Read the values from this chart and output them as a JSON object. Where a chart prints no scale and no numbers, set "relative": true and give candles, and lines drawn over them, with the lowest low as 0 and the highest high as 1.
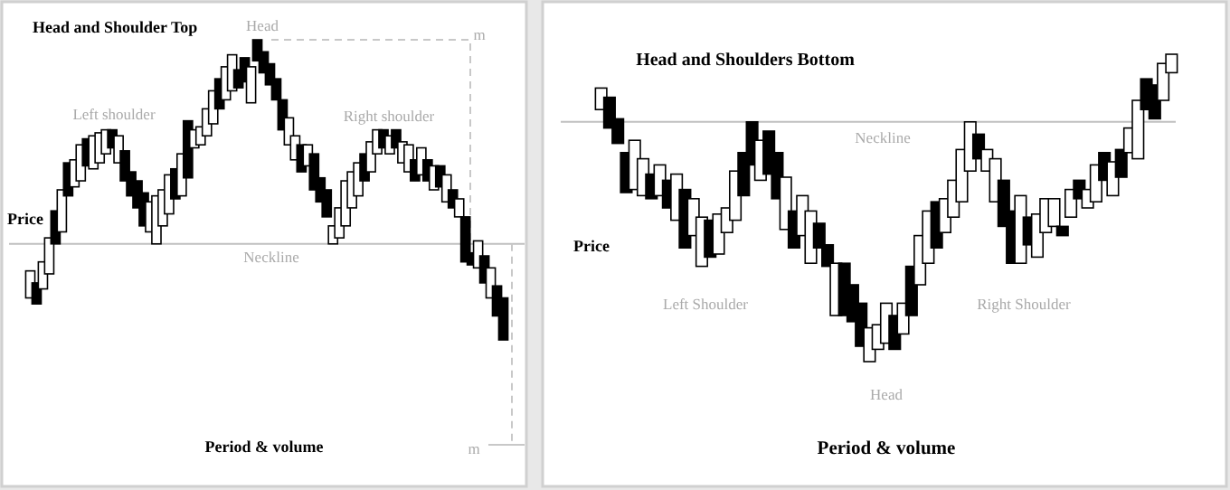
{
  "chart_data": [
    {
      "type": "candlestick",
      "title": "Head and Shoulder Top",
      "xlabel": "Period & volume",
      "ylabel": "Price",
      "relative": true,
      "color": "#000000",
      "categories": [
        null,
        null,
        null,
        null,
        null,
        null,
        null,
        null,
        null,
        null,
        null,
        null,
        null,
        null,
        null,
        null,
        null,
        null,
        null,
        null,
        null,
        null,
        null,
        null,
        null,
        null,
        null,
        null,
        null,
        null,
        null,
        null,
        null,
        null,
        null,
        null,
        null,
        null,
        null,
        null,
        null,
        null,
        null,
        null,
        null,
        null,
        null,
        null,
        null,
        null,
        null,
        null,
        null,
        null,
        null,
        null,
        null,
        null,
        null,
        null,
        null,
        null,
        null,
        null,
        null,
        null,
        null,
        null,
        null,
        null,
        null,
        null,
        null,
        null,
        null,
        null
      ],
      "ohlc": [
        [
          0.14,
          0.23,
          0.14,
          0.23
        ],
        [
          0.19,
          0.19,
          0.12,
          0.12
        ],
        [
          0.17,
          0.26,
          0.17,
          0.26
        ],
        [
          0.22,
          0.34,
          0.22,
          0.34
        ],
        [
          0.43,
          0.43,
          0.32,
          0.32
        ],
        [
          0.36,
          0.5,
          0.36,
          0.5
        ],
        [
          0.59,
          0.59,
          0.48,
          0.48
        ],
        [
          0.51,
          0.6,
          0.51,
          0.6
        ],
        [
          0.53,
          0.65,
          0.53,
          0.65
        ],
        [
          0.67,
          0.67,
          0.58,
          0.58
        ],
        [
          0.57,
          0.68,
          0.57,
          0.68
        ],
        [
          0.59,
          0.69,
          0.59,
          0.69
        ],
        [
          0.62,
          0.7,
          0.62,
          0.7
        ],
        [
          0.7,
          0.7,
          0.64,
          0.64
        ],
        [
          0.59,
          0.68,
          0.59,
          0.68
        ],
        [
          0.63,
          0.63,
          0.53,
          0.53
        ],
        [
          0.56,
          0.56,
          0.48,
          0.48
        ],
        [
          0.53,
          0.53,
          0.44,
          0.44
        ],
        [
          0.49,
          0.49,
          0.38,
          0.38
        ],
        [
          0.36,
          0.46,
          0.36,
          0.46
        ],
        [
          0.32,
          0.48,
          0.32,
          0.48
        ],
        [
          0.38,
          0.5,
          0.38,
          0.5
        ],
        [
          0.42,
          0.55,
          0.42,
          0.55
        ],
        [
          0.57,
          0.57,
          0.47,
          0.47
        ],
        [
          0.48,
          0.62,
          0.48,
          0.62
        ],
        [
          0.73,
          0.73,
          0.54,
          0.54
        ],
        [
          0.64,
          0.7,
          0.64,
          0.7
        ],
        [
          0.65,
          0.71,
          0.65,
          0.71
        ],
        [
          0.68,
          0.77,
          0.68,
          0.77
        ],
        [
          0.72,
          0.83,
          0.72,
          0.83
        ],
        [
          0.87,
          0.87,
          0.77,
          0.77
        ],
        [
          0.8,
          0.91,
          0.8,
          0.91
        ],
        [
          0.83,
          0.95,
          0.83,
          0.95
        ],
        [
          0.9,
          0.9,
          0.84,
          0.84
        ],
        [
          0.94,
          0.94,
          0.86,
          0.86
        ],
        [
          0.79,
          0.91,
          0.79,
          0.91
        ],
        [
          1,
          1,
          0.93,
          0.93
        ],
        [
          0.96,
          0.96,
          0.89,
          0.89
        ],
        [
          0.92,
          0.92,
          0.85,
          0.85
        ],
        [
          0.87,
          0.87,
          0.8,
          0.8
        ],
        [
          0.8,
          0.8,
          0.7,
          0.7
        ],
        [
          0.65,
          0.74,
          0.65,
          0.74
        ],
        [
          0.6,
          0.68,
          0.6,
          0.68
        ],
        [
          0.65,
          0.65,
          0.56,
          0.56
        ],
        [
          0.58,
          0.65,
          0.58,
          0.65
        ],
        [
          0.62,
          0.62,
          0.5,
          0.5
        ],
        [
          0.54,
          0.54,
          0.46,
          0.46
        ],
        [
          0.5,
          0.5,
          0.41,
          0.41
        ],
        [
          0.32,
          0.38,
          0.32,
          0.38
        ],
        [
          0.34,
          0.44,
          0.34,
          0.44
        ],
        [
          0.38,
          0.53,
          0.38,
          0.53
        ],
        [
          0.44,
          0.56,
          0.44,
          0.56
        ],
        [
          0.48,
          0.59,
          0.48,
          0.59
        ],
        [
          0.62,
          0.62,
          0.53,
          0.53
        ],
        [
          0.56,
          0.66,
          0.56,
          0.66
        ],
        [
          0.62,
          0.7,
          0.62,
          0.7
        ],
        [
          0.7,
          0.7,
          0.64,
          0.64
        ],
        [
          0.62,
          0.68,
          0.62,
          0.68
        ],
        [
          0.7,
          0.7,
          0.64,
          0.64
        ],
        [
          0.59,
          0.66,
          0.59,
          0.66
        ],
        [
          0.56,
          0.65,
          0.56,
          0.65
        ],
        [
          0.6,
          0.6,
          0.53,
          0.53
        ],
        [
          0.55,
          0.64,
          0.55,
          0.64
        ],
        [
          0.6,
          0.6,
          0.53,
          0.53
        ],
        [
          0.5,
          0.58,
          0.5,
          0.58
        ],
        [
          0.58,
          0.58,
          0.51,
          0.51
        ],
        [
          0.46,
          0.55,
          0.46,
          0.55
        ],
        [
          0.5,
          0.5,
          0.44,
          0.44
        ],
        [
          0.41,
          0.47,
          0.41,
          0.47
        ],
        [
          0.41,
          0.41,
          0.26,
          0.26
        ],
        [
          0.29,
          0.29,
          0.25,
          0.25
        ],
        [
          0.24,
          0.33,
          0.24,
          0.33
        ],
        [
          0.28,
          0.28,
          0.19,
          0.19
        ],
        [
          0.14,
          0.24,
          0.14,
          0.24
        ],
        [
          0.18,
          0.18,
          0.08,
          0.08
        ],
        [
          0.14,
          0.14,
          0,
          0
        ]
      ],
      "ref_lines": [
        {
          "axis": "y",
          "value": 0.32,
          "label": "Neckline",
          "color": "#c0c0c0"
        }
      ],
      "annotations": [
        "Head",
        "Left shoulder",
        "Right shoulder",
        "m",
        "m"
      ]
    },
    {
      "type": "candlestick",
      "title": "Head and Shoulders Bottom",
      "xlabel": "Period & volume",
      "ylabel": "Price",
      "relative": true,
      "color": "#000000",
      "categories": [
        null,
        null,
        null,
        null,
        null,
        null,
        null,
        null,
        null,
        null,
        null,
        null,
        null,
        null,
        null,
        null,
        null,
        null,
        null,
        null,
        null,
        null,
        null,
        null,
        null,
        null,
        null,
        null,
        null,
        null,
        null,
        null,
        null,
        null,
        null,
        null,
        null,
        null,
        null,
        null,
        null,
        null,
        null,
        null,
        null,
        null,
        null,
        null,
        null,
        null,
        null,
        null,
        null,
        null,
        null,
        null,
        null,
        null,
        null,
        null,
        null,
        null,
        null,
        null,
        null,
        null,
        null,
        null,
        null
      ],
      "ohlc": [
        [
          0.82,
          0.89,
          0.82,
          0.89
        ],
        [
          0.86,
          0.86,
          0.76,
          0.76
        ],
        [
          0.79,
          0.79,
          0.71,
          0.71
        ],
        [
          0.68,
          0.68,
          0.55,
          0.55
        ],
        [
          0.56,
          0.72,
          0.56,
          0.72
        ],
        [
          0.54,
          0.66,
          0.54,
          0.66
        ],
        [
          0.61,
          0.61,
          0.53,
          0.53
        ],
        [
          0.54,
          0.64,
          0.54,
          0.64
        ],
        [
          0.59,
          0.59,
          0.5,
          0.5
        ],
        [
          0.46,
          0.61,
          0.46,
          0.61
        ],
        [
          0.56,
          0.56,
          0.37,
          0.37
        ],
        [
          0.41,
          0.53,
          0.41,
          0.53
        ],
        [
          0.31,
          0.47,
          0.31,
          0.47
        ],
        [
          0.46,
          0.46,
          0.34,
          0.34
        ],
        [
          0.35,
          0.48,
          0.35,
          0.48
        ],
        [
          0.42,
          0.5,
          0.42,
          0.5
        ],
        [
          0.46,
          0.62,
          0.46,
          0.62
        ],
        [
          0.68,
          0.68,
          0.54,
          0.54
        ],
        [
          0.78,
          0.78,
          0.64,
          0.64
        ],
        [
          0.59,
          0.72,
          0.59,
          0.72
        ],
        [
          0.75,
          0.75,
          0.61,
          0.61
        ],
        [
          0.68,
          0.68,
          0.53,
          0.53
        ],
        [
          0.43,
          0.6,
          0.43,
          0.6
        ],
        [
          0.49,
          0.49,
          0.37,
          0.37
        ],
        [
          0.41,
          0.54,
          0.41,
          0.54
        ],
        [
          0.32,
          0.49,
          0.32,
          0.49
        ],
        [
          0.45,
          0.45,
          0.37,
          0.37
        ],
        [
          0.38,
          0.38,
          0.31,
          0.31
        ],
        [
          0.15,
          0.32,
          0.15,
          0.32
        ],
        [
          0.32,
          0.32,
          0.15,
          0.15
        ],
        [
          0.25,
          0.25,
          0.13,
          0.13
        ],
        [
          0.19,
          0.19,
          0.05,
          0.05
        ],
        [
          0,
          0.11,
          0,
          0.11
        ],
        [
          0.04,
          0.12,
          0.04,
          0.12
        ],
        [
          0.06,
          0.19,
          0.06,
          0.19
        ],
        [
          0.15,
          0.15,
          0.04,
          0.04
        ],
        [
          0.09,
          0.19,
          0.09,
          0.19
        ],
        [
          0.31,
          0.31,
          0.15,
          0.15
        ],
        [
          0.25,
          0.41,
          0.25,
          0.41
        ],
        [
          0.32,
          0.49,
          0.32,
          0.49
        ],
        [
          0.52,
          0.52,
          0.37,
          0.37
        ],
        [
          0.42,
          0.53,
          0.42,
          0.53
        ],
        [
          0.47,
          0.59,
          0.47,
          0.59
        ],
        [
          0.52,
          0.69,
          0.52,
          0.69
        ],
        [
          0.62,
          0.78,
          0.62,
          0.78
        ],
        [
          0.74,
          0.74,
          0.66,
          0.66
        ],
        [
          0.62,
          0.69,
          0.62,
          0.69
        ],
        [
          0.52,
          0.66,
          0.52,
          0.66
        ],
        [
          0.59,
          0.59,
          0.44,
          0.44
        ],
        [
          0.49,
          0.49,
          0.32,
          0.32
        ],
        [
          0.32,
          0.54,
          0.32,
          0.54
        ],
        [
          0.47,
          0.47,
          0.38,
          0.38
        ],
        [
          0.34,
          0.48,
          0.34,
          0.48
        ],
        [
          0.42,
          0.53,
          0.42,
          0.53
        ],
        [
          0.44,
          0.53,
          0.44,
          0.53
        ],
        [
          0.44,
          0.44,
          0.41,
          0.41
        ],
        [
          0.47,
          0.56,
          0.47,
          0.56
        ],
        [
          0.59,
          0.59,
          0.53,
          0.53
        ],
        [
          0.5,
          0.56,
          0.5,
          0.56
        ],
        [
          0.52,
          0.64,
          0.52,
          0.64
        ],
        [
          0.68,
          0.68,
          0.59,
          0.59
        ],
        [
          0.54,
          0.65,
          0.54,
          0.65
        ],
        [
          0.69,
          0.69,
          0.6,
          0.6
        ],
        [
          0.68,
          0.76,
          0.68,
          0.76
        ],
        [
          0.66,
          0.85,
          0.66,
          0.85
        ],
        [
          0.92,
          0.92,
          0.82,
          0.82
        ],
        [
          0.9,
          0.9,
          0.79,
          0.79
        ],
        [
          0.85,
          0.97,
          0.85,
          0.97
        ],
        [
          0.94,
          1,
          0.94,
          1
        ]
      ],
      "ref_lines": [
        {
          "axis": "y",
          "value": 0.78,
          "label": "Neckline",
          "color": "#c0c0c0"
        }
      ],
      "annotations": [
        "Left Shoulder",
        "Right Shoulder",
        "Head"
      ]
    }
  ]
}
